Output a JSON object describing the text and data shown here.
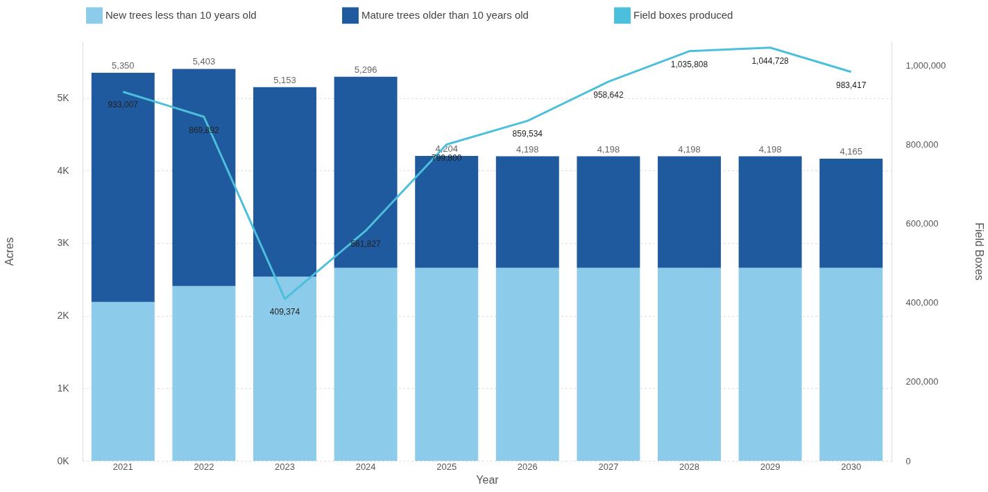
{
  "chart_data": {
    "type": "bar",
    "stacked": true,
    "xlabel": "Year",
    "ylabel": "Acres",
    "y2label": "Field Boxes",
    "categories": [
      "2021",
      "2022",
      "2023",
      "2024",
      "2025",
      "2026",
      "2027",
      "2028",
      "2029",
      "2030"
    ],
    "series": [
      {
        "name": "New trees less than 10 years old",
        "color": "#8ccbe9",
        "values": [
          2190,
          2410,
          2540,
          2660,
          2660,
          2660,
          2660,
          2660,
          2660,
          2660
        ]
      },
      {
        "name": "Mature trees older than 10 years old",
        "color": "#1f5a9e",
        "values": [
          3160,
          2993,
          2613,
          2636,
          1544,
          1538,
          1538,
          1538,
          1538,
          1505
        ]
      },
      {
        "name": "Field boxes produced",
        "type": "line",
        "axis": "y2",
        "color": "#4cbfdc",
        "values": [
          933007,
          869892,
          409374,
          581827,
          799800,
          859534,
          958642,
          1035808,
          1044728,
          983417
        ],
        "value_labels": [
          "933,007",
          "869,892",
          "409,374",
          "581,827",
          "799,800",
          "859,534",
          "958,642",
          "1,035,808",
          "1,044,728",
          "983,417"
        ]
      }
    ],
    "totals": [
      "5,350",
      "5,403",
      "5,153",
      "5,296",
      "4,204",
      "4,198",
      "4,198",
      "4,198",
      "4,198",
      "4,165"
    ],
    "ylim": [
      0,
      5780
    ],
    "yticks": [
      {
        "value": 0,
        "label": "0K"
      },
      {
        "value": 1000,
        "label": "1K"
      },
      {
        "value": 2000,
        "label": "2K"
      },
      {
        "value": 3000,
        "label": "3K"
      },
      {
        "value": 4000,
        "label": "4K"
      },
      {
        "value": 5000,
        "label": "5K"
      }
    ],
    "y2lim": [
      0,
      1060000
    ],
    "y2ticks": [
      0,
      {
        "value": 200000,
        "label": "200,000"
      },
      {
        "value": 400000,
        "label": "400,000"
      },
      {
        "value": 600000,
        "label": "600,000"
      },
      {
        "value": 800000,
        "label": "800,000"
      },
      {
        "value": 1000000,
        "label": "1,000,000"
      }
    ],
    "grid": "y",
    "legend": "top"
  }
}
